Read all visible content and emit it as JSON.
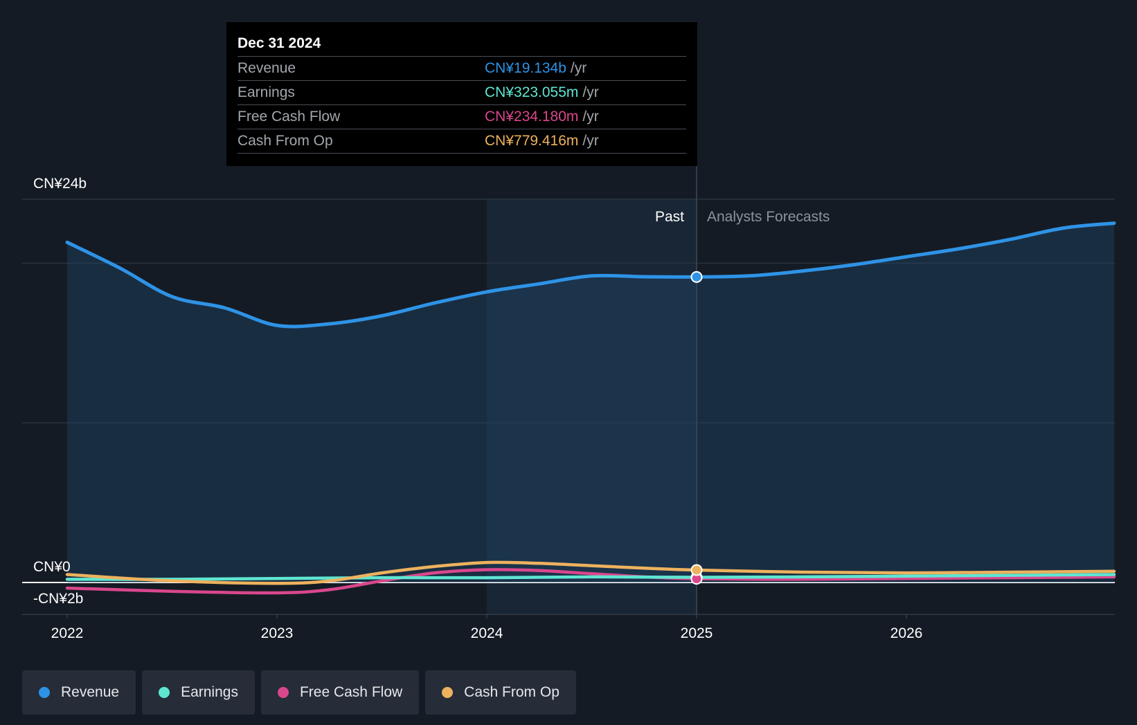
{
  "tooltip": {
    "date": "Dec 31 2024",
    "unit": "/yr",
    "rows": [
      {
        "label": "Revenue",
        "value": "CN¥19.134b",
        "color": "#2e93e6"
      },
      {
        "label": "Earnings",
        "value": "CN¥323.055m",
        "color": "#5ee6d2"
      },
      {
        "label": "Free Cash Flow",
        "value": "CN¥234.180m",
        "color": "#d9478d"
      },
      {
        "label": "Cash From Op",
        "value": "CN¥779.416m",
        "color": "#edb25e"
      }
    ]
  },
  "legend": [
    {
      "label": "Revenue",
      "color": "#2e93e6"
    },
    {
      "label": "Earnings",
      "color": "#5ee6d2"
    },
    {
      "label": "Free Cash Flow",
      "color": "#d9478d"
    },
    {
      "label": "Cash From Op",
      "color": "#edb25e"
    }
  ],
  "chart_data": {
    "type": "line",
    "title": "",
    "xlabel": "",
    "ylabel": "",
    "unit": "CN¥ billions",
    "ylim": [
      -2,
      24
    ],
    "xlim": [
      2021.79,
      2026.99
    ],
    "y_tick_labels": [
      {
        "value": 24,
        "label": "CN¥24b"
      },
      {
        "value": 0,
        "label": "CN¥0"
      },
      {
        "value": -2,
        "label": "-CN¥2b"
      }
    ],
    "x_ticks": [
      2022,
      2023,
      2024,
      2025,
      2026
    ],
    "gridlines": [
      24,
      20,
      10,
      0
    ],
    "past_label": "Past",
    "forecast_label": "Analysts Forecasts",
    "past_end": 2025,
    "highlight_start": 2024,
    "series": [
      {
        "name": "Revenue",
        "color": "#2e93e6",
        "fill": true,
        "points": [
          [
            2022.0,
            21.3
          ],
          [
            2022.25,
            19.7
          ],
          [
            2022.5,
            17.9
          ],
          [
            2022.75,
            17.2
          ],
          [
            2023.0,
            16.1
          ],
          [
            2023.25,
            16.2
          ],
          [
            2023.5,
            16.7
          ],
          [
            2023.75,
            17.5
          ],
          [
            2024.0,
            18.2
          ],
          [
            2024.25,
            18.7
          ],
          [
            2024.5,
            19.2
          ],
          [
            2024.75,
            19.15
          ],
          [
            2025.0,
            19.134
          ],
          [
            2025.25,
            19.2
          ],
          [
            2025.5,
            19.5
          ],
          [
            2025.75,
            19.9
          ],
          [
            2026.0,
            20.4
          ],
          [
            2026.25,
            20.9
          ],
          [
            2026.5,
            21.5
          ],
          [
            2026.75,
            22.2
          ],
          [
            2026.99,
            22.5
          ]
        ]
      },
      {
        "name": "Earnings",
        "color": "#5ee6d2",
        "points": [
          [
            2022.0,
            0.2
          ],
          [
            2022.5,
            0.2
          ],
          [
            2023.0,
            0.25
          ],
          [
            2023.5,
            0.3
          ],
          [
            2024.0,
            0.3
          ],
          [
            2024.5,
            0.35
          ],
          [
            2025.0,
            0.323
          ],
          [
            2025.5,
            0.35
          ],
          [
            2026.0,
            0.4
          ],
          [
            2026.5,
            0.45
          ],
          [
            2026.99,
            0.5
          ]
        ]
      },
      {
        "name": "Free Cash Flow",
        "color": "#d9478d",
        "points": [
          [
            2022.0,
            -0.35
          ],
          [
            2022.5,
            -0.55
          ],
          [
            2023.0,
            -0.65
          ],
          [
            2023.25,
            -0.45
          ],
          [
            2023.5,
            0.1
          ],
          [
            2023.75,
            0.6
          ],
          [
            2024.0,
            0.8
          ],
          [
            2024.25,
            0.75
          ],
          [
            2024.5,
            0.55
          ],
          [
            2024.75,
            0.35
          ],
          [
            2025.0,
            0.234
          ],
          [
            2025.5,
            0.2
          ],
          [
            2026.0,
            0.25
          ],
          [
            2026.5,
            0.3
          ],
          [
            2026.99,
            0.35
          ]
        ]
      },
      {
        "name": "Cash From Op",
        "color": "#edb25e",
        "points": [
          [
            2022.0,
            0.5
          ],
          [
            2022.5,
            0.1
          ],
          [
            2023.0,
            -0.05
          ],
          [
            2023.25,
            0.1
          ],
          [
            2023.5,
            0.6
          ],
          [
            2023.75,
            1.0
          ],
          [
            2024.0,
            1.25
          ],
          [
            2024.25,
            1.2
          ],
          [
            2024.5,
            1.05
          ],
          [
            2024.75,
            0.9
          ],
          [
            2025.0,
            0.779
          ],
          [
            2025.5,
            0.65
          ],
          [
            2026.0,
            0.6
          ],
          [
            2026.5,
            0.65
          ],
          [
            2026.99,
            0.7
          ]
        ]
      }
    ]
  }
}
